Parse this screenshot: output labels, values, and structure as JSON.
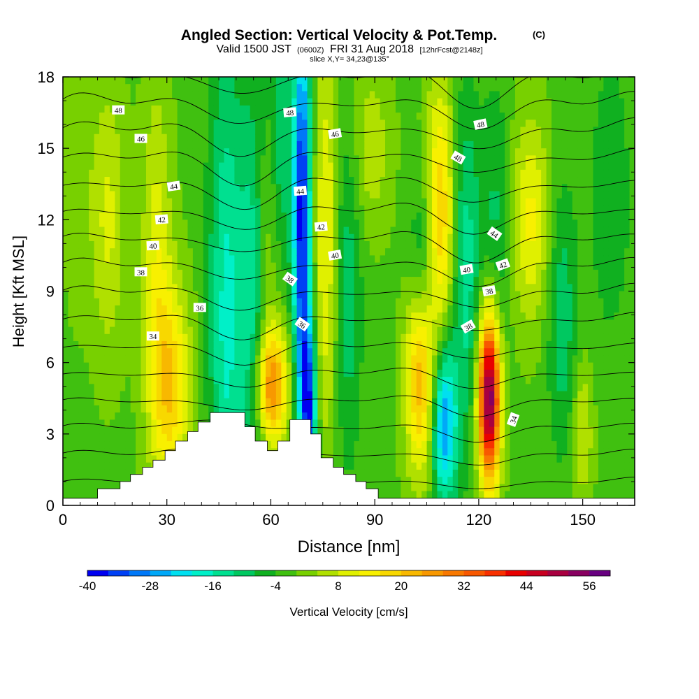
{
  "chart_data": {
    "type": "heatmap",
    "title": "Angled Section: Vertical Velocity & Pot.Temp.",
    "title_suffix": "(C)",
    "subtitle_main": "Valid 1500 JST",
    "subtitle_z": "(0600Z)",
    "subtitle_date": "FRI 31 Aug 2018",
    "subtitle_fcst": "[12hrFcst@2148z]",
    "slice_text": "slice X,Y= 34,23@135°",
    "xlabel": "Distance [nm]",
    "ylabel": "Height [Kft MSL]",
    "xlim": [
      0,
      165
    ],
    "ylim": [
      0,
      18
    ],
    "xticks": [
      "0",
      "30",
      "60",
      "90",
      "120",
      "150"
    ],
    "yticks": [
      "0",
      "3",
      "6",
      "9",
      "12",
      "15",
      "18"
    ],
    "colorbar": {
      "label": "Vertical Velocity [cm/s]",
      "min": -40,
      "max": 60,
      "step": 4,
      "tick_labels": [
        "-40",
        "-28",
        "-16",
        "-4",
        "8",
        "20",
        "32",
        "44",
        "56"
      ],
      "colors": [
        "#0000f0",
        "#0040f4",
        "#0078f8",
        "#00a8f8",
        "#00e0f0",
        "#00f0c8",
        "#00e090",
        "#00c860",
        "#10b020",
        "#40c010",
        "#78d000",
        "#b0e000",
        "#e0f000",
        "#f8f000",
        "#f8d800",
        "#f8b800",
        "#f89800",
        "#f87800",
        "#f85800",
        "#f83000",
        "#e80000",
        "#c80020",
        "#a80040",
        "#880060",
        "#680080"
      ]
    },
    "terrain": [
      [
        0,
        0.3
      ],
      [
        10,
        0.3
      ],
      [
        10,
        0.7
      ],
      [
        16.5,
        0.7
      ],
      [
        16.5,
        1
      ],
      [
        19.5,
        1
      ],
      [
        19.5,
        1.3
      ],
      [
        23,
        1.3
      ],
      [
        23,
        1.6
      ],
      [
        26,
        1.6
      ],
      [
        26,
        1.9
      ],
      [
        29.5,
        1.9
      ],
      [
        29.5,
        2.3
      ],
      [
        32.5,
        2.3
      ],
      [
        32.5,
        2.7
      ],
      [
        36,
        2.7
      ],
      [
        36,
        3.1
      ],
      [
        39,
        3.1
      ],
      [
        39,
        3.5
      ],
      [
        42.5,
        3.5
      ],
      [
        42.5,
        3.9
      ],
      [
        52.5,
        3.9
      ],
      [
        52.5,
        3.3
      ],
      [
        55.5,
        3.3
      ],
      [
        55.5,
        2.7
      ],
      [
        59,
        2.7
      ],
      [
        59,
        2.3
      ],
      [
        62,
        2.3
      ],
      [
        62,
        2.7
      ],
      [
        65.5,
        2.7
      ],
      [
        65.5,
        3.6
      ],
      [
        71.5,
        3.6
      ],
      [
        71.5,
        3
      ],
      [
        74.5,
        3
      ],
      [
        74.5,
        2
      ],
      [
        78,
        2
      ],
      [
        78,
        1.6
      ],
      [
        81,
        1.6
      ],
      [
        81,
        1.3
      ],
      [
        84.5,
        1.3
      ],
      [
        84.5,
        1
      ],
      [
        87.5,
        1
      ],
      [
        87.5,
        0.7
      ],
      [
        91,
        0.7
      ],
      [
        91,
        0.3
      ],
      [
        165,
        0.3
      ]
    ],
    "vv_features": [
      {
        "x": 31,
        "y": 5.0,
        "sx": 4,
        "sy": 3.0,
        "v": 20
      },
      {
        "x": 27,
        "y": 10.5,
        "sx": 3,
        "sy": 5.0,
        "v": 11
      },
      {
        "x": 13,
        "y": 12.0,
        "sx": 3.5,
        "sy": 4.0,
        "v": 10
      },
      {
        "x": 4,
        "y": 14.0,
        "sx": 3,
        "sy": 4.0,
        "v": 4
      },
      {
        "x": 47,
        "y": 8.0,
        "sx": 3.5,
        "sy": 8.0,
        "v": -16
      },
      {
        "x": 55,
        "y": 7.5,
        "sx": 3,
        "sy": 7.0,
        "v": -15
      },
      {
        "x": 60,
        "y": 5.0,
        "sx": 3.5,
        "sy": 1.8,
        "v": 30
      },
      {
        "x": 59,
        "y": 11.0,
        "sx": 2.5,
        "sy": 3.5,
        "v": 8
      },
      {
        "x": 63,
        "y": 15.0,
        "sx": 2.5,
        "sy": 4.0,
        "v": -10
      },
      {
        "x": 69,
        "y": 12.0,
        "sx": 1.8,
        "sy": 6.0,
        "v": -38
      },
      {
        "x": 71,
        "y": 4.0,
        "sx": 1.6,
        "sy": 2.5,
        "v": -30
      },
      {
        "x": 76,
        "y": 11.0,
        "sx": 2.5,
        "sy": 6.0,
        "v": 14
      },
      {
        "x": 82,
        "y": 9.0,
        "sx": 3,
        "sy": 5.0,
        "v": -10
      },
      {
        "x": 89,
        "y": 15.0,
        "sx": 4,
        "sy": 2.5,
        "v": 8
      },
      {
        "x": 103,
        "y": 5.5,
        "sx": 3,
        "sy": 3.0,
        "v": 24
      },
      {
        "x": 104,
        "y": 10.0,
        "sx": 3,
        "sy": 2.5,
        "v": -12
      },
      {
        "x": 110,
        "y": 3.5,
        "sx": 2.5,
        "sy": 2.5,
        "v": -28
      },
      {
        "x": 109,
        "y": 12.0,
        "sx": 3,
        "sy": 4.0,
        "v": 22
      },
      {
        "x": 116,
        "y": 10.0,
        "sx": 3,
        "sy": 5.0,
        "v": -14
      },
      {
        "x": 123,
        "y": 4.5,
        "sx": 2.2,
        "sy": 2.5,
        "v": 58
      },
      {
        "x": 125,
        "y": 12.0,
        "sx": 3,
        "sy": 4.0,
        "v": -8
      },
      {
        "x": 135,
        "y": 12.0,
        "sx": 4,
        "sy": 3.0,
        "v": 14
      },
      {
        "x": 144,
        "y": 8.0,
        "sx": 3,
        "sy": 4.0,
        "v": -10
      },
      {
        "x": 150,
        "y": 3.0,
        "sx": 2,
        "sy": 2.0,
        "v": 10
      },
      {
        "x": 158,
        "y": 13.0,
        "sx": 4,
        "sy": 4.0,
        "v": -7
      }
    ],
    "vv_background": -1,
    "isentrope_values": [
      34,
      35,
      36,
      37,
      38,
      39,
      40,
      41,
      42,
      43,
      44,
      45,
      46,
      47,
      48,
      49
    ],
    "isentrope_labels": [
      {
        "text": "48",
        "x": 16,
        "y": 16.6,
        "a": 0
      },
      {
        "text": "46",
        "x": 22.5,
        "y": 15.4,
        "a": 0
      },
      {
        "text": "44",
        "x": 32,
        "y": 13.4,
        "a": -8
      },
      {
        "text": "42",
        "x": 28.5,
        "y": 12.0,
        "a": -5
      },
      {
        "text": "40",
        "x": 26,
        "y": 10.9,
        "a": -3
      },
      {
        "text": "38",
        "x": 22.5,
        "y": 9.8,
        "a": 0
      },
      {
        "text": "36",
        "x": 39.5,
        "y": 8.3,
        "a": 0
      },
      {
        "text": "34",
        "x": 26,
        "y": 7.1,
        "a": 0
      },
      {
        "text": "48",
        "x": 65.5,
        "y": 16.5,
        "a": -5
      },
      {
        "text": "46",
        "x": 78.5,
        "y": 15.6,
        "a": -10
      },
      {
        "text": "44",
        "x": 68.5,
        "y": 13.2,
        "a": -5
      },
      {
        "text": "42",
        "x": 74.5,
        "y": 11.7,
        "a": -5
      },
      {
        "text": "40",
        "x": 78.5,
        "y": 10.5,
        "a": -10
      },
      {
        "text": "38",
        "x": 65.5,
        "y": 9.5,
        "a": 35
      },
      {
        "text": "36",
        "x": 69,
        "y": 7.6,
        "a": 35
      },
      {
        "text": "48",
        "x": 120.5,
        "y": 16.0,
        "a": -12
      },
      {
        "text": "48",
        "x": 114,
        "y": 14.6,
        "a": 30
      },
      {
        "text": "44",
        "x": 124.5,
        "y": 11.4,
        "a": 35
      },
      {
        "text": "42",
        "x": 127,
        "y": 10.1,
        "a": -20
      },
      {
        "text": "40",
        "x": 116.5,
        "y": 9.9,
        "a": -10
      },
      {
        "text": "38",
        "x": 123,
        "y": 9.0,
        "a": -10
      },
      {
        "text": "38",
        "x": 117,
        "y": 7.5,
        "a": -30
      },
      {
        "text": "34",
        "x": 130,
        "y": 3.6,
        "a": -70
      }
    ]
  }
}
